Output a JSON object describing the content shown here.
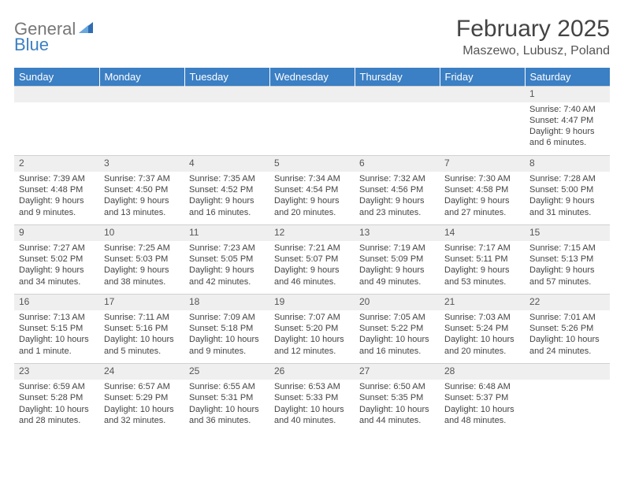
{
  "logo": {
    "general": "General",
    "blue": "Blue",
    "icon_color": "#2f6db3"
  },
  "title": "February 2025",
  "location": "Maszewo, Lubusz, Poland",
  "colors": {
    "header_bg": "#3b7fc4",
    "header_text": "#ffffff",
    "daynum_bg": "#efefef",
    "text": "#444444",
    "border": "#d0d0d0"
  },
  "typography": {
    "title_size": 30,
    "location_size": 16,
    "header_size": 13,
    "cell_size": 11
  },
  "day_headers": [
    "Sunday",
    "Monday",
    "Tuesday",
    "Wednesday",
    "Thursday",
    "Friday",
    "Saturday"
  ],
  "weeks": [
    {
      "nums": [
        "",
        "",
        "",
        "",
        "",
        "",
        "1"
      ],
      "sunrise": [
        "",
        "",
        "",
        "",
        "",
        "",
        "Sunrise: 7:40 AM"
      ],
      "sunset": [
        "",
        "",
        "",
        "",
        "",
        "",
        "Sunset: 4:47 PM"
      ],
      "day1": [
        "",
        "",
        "",
        "",
        "",
        "",
        "Daylight: 9 hours"
      ],
      "day2": [
        "",
        "",
        "",
        "",
        "",
        "",
        "and 6 minutes."
      ]
    },
    {
      "nums": [
        "2",
        "3",
        "4",
        "5",
        "6",
        "7",
        "8"
      ],
      "sunrise": [
        "Sunrise: 7:39 AM",
        "Sunrise: 7:37 AM",
        "Sunrise: 7:35 AM",
        "Sunrise: 7:34 AM",
        "Sunrise: 7:32 AM",
        "Sunrise: 7:30 AM",
        "Sunrise: 7:28 AM"
      ],
      "sunset": [
        "Sunset: 4:48 PM",
        "Sunset: 4:50 PM",
        "Sunset: 4:52 PM",
        "Sunset: 4:54 PM",
        "Sunset: 4:56 PM",
        "Sunset: 4:58 PM",
        "Sunset: 5:00 PM"
      ],
      "day1": [
        "Daylight: 9 hours",
        "Daylight: 9 hours",
        "Daylight: 9 hours",
        "Daylight: 9 hours",
        "Daylight: 9 hours",
        "Daylight: 9 hours",
        "Daylight: 9 hours"
      ],
      "day2": [
        "and 9 minutes.",
        "and 13 minutes.",
        "and 16 minutes.",
        "and 20 minutes.",
        "and 23 minutes.",
        "and 27 minutes.",
        "and 31 minutes."
      ]
    },
    {
      "nums": [
        "9",
        "10",
        "11",
        "12",
        "13",
        "14",
        "15"
      ],
      "sunrise": [
        "Sunrise: 7:27 AM",
        "Sunrise: 7:25 AM",
        "Sunrise: 7:23 AM",
        "Sunrise: 7:21 AM",
        "Sunrise: 7:19 AM",
        "Sunrise: 7:17 AM",
        "Sunrise: 7:15 AM"
      ],
      "sunset": [
        "Sunset: 5:02 PM",
        "Sunset: 5:03 PM",
        "Sunset: 5:05 PM",
        "Sunset: 5:07 PM",
        "Sunset: 5:09 PM",
        "Sunset: 5:11 PM",
        "Sunset: 5:13 PM"
      ],
      "day1": [
        "Daylight: 9 hours",
        "Daylight: 9 hours",
        "Daylight: 9 hours",
        "Daylight: 9 hours",
        "Daylight: 9 hours",
        "Daylight: 9 hours",
        "Daylight: 9 hours"
      ],
      "day2": [
        "and 34 minutes.",
        "and 38 minutes.",
        "and 42 minutes.",
        "and 46 minutes.",
        "and 49 minutes.",
        "and 53 minutes.",
        "and 57 minutes."
      ]
    },
    {
      "nums": [
        "16",
        "17",
        "18",
        "19",
        "20",
        "21",
        "22"
      ],
      "sunrise": [
        "Sunrise: 7:13 AM",
        "Sunrise: 7:11 AM",
        "Sunrise: 7:09 AM",
        "Sunrise: 7:07 AM",
        "Sunrise: 7:05 AM",
        "Sunrise: 7:03 AM",
        "Sunrise: 7:01 AM"
      ],
      "sunset": [
        "Sunset: 5:15 PM",
        "Sunset: 5:16 PM",
        "Sunset: 5:18 PM",
        "Sunset: 5:20 PM",
        "Sunset: 5:22 PM",
        "Sunset: 5:24 PM",
        "Sunset: 5:26 PM"
      ],
      "day1": [
        "Daylight: 10 hours",
        "Daylight: 10 hours",
        "Daylight: 10 hours",
        "Daylight: 10 hours",
        "Daylight: 10 hours",
        "Daylight: 10 hours",
        "Daylight: 10 hours"
      ],
      "day2": [
        "and 1 minute.",
        "and 5 minutes.",
        "and 9 minutes.",
        "and 12 minutes.",
        "and 16 minutes.",
        "and 20 minutes.",
        "and 24 minutes."
      ]
    },
    {
      "nums": [
        "23",
        "24",
        "25",
        "26",
        "27",
        "28",
        ""
      ],
      "sunrise": [
        "Sunrise: 6:59 AM",
        "Sunrise: 6:57 AM",
        "Sunrise: 6:55 AM",
        "Sunrise: 6:53 AM",
        "Sunrise: 6:50 AM",
        "Sunrise: 6:48 AM",
        ""
      ],
      "sunset": [
        "Sunset: 5:28 PM",
        "Sunset: 5:29 PM",
        "Sunset: 5:31 PM",
        "Sunset: 5:33 PM",
        "Sunset: 5:35 PM",
        "Sunset: 5:37 PM",
        ""
      ],
      "day1": [
        "Daylight: 10 hours",
        "Daylight: 10 hours",
        "Daylight: 10 hours",
        "Daylight: 10 hours",
        "Daylight: 10 hours",
        "Daylight: 10 hours",
        ""
      ],
      "day2": [
        "and 28 minutes.",
        "and 32 minutes.",
        "and 36 minutes.",
        "and 40 minutes.",
        "and 44 minutes.",
        "and 48 minutes.",
        ""
      ]
    }
  ]
}
